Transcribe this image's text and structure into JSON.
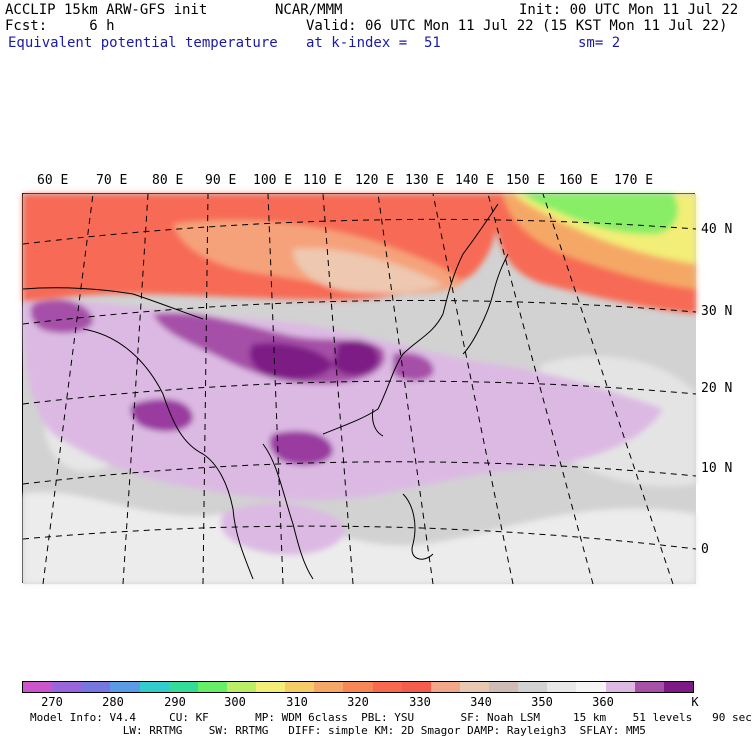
{
  "header": {
    "line1_left": "ACCLIP 15km ARW-GFS init",
    "line1_mid": "NCAR/MMM",
    "line1_right": "Init: 00 UTC Mon 11 Jul 22",
    "line2_left": "Fcst:     6 h",
    "line2_right": "Valid: 06 UTC Mon 11 Jul 22 (15 KST Mon 11 Jul 22)",
    "line3_left": "Equivalent potential temperature",
    "line3_mid": "at k-index =  51",
    "line3_right": "sm= 2"
  },
  "map": {
    "lon_labels": [
      "60 E",
      "70 E",
      "80 E",
      "90 E",
      "100 E",
      "110 E",
      "120 E",
      "130 E",
      "140 E",
      "150 E",
      "160 E",
      "170 E"
    ],
    "lat_labels": [
      "40 N",
      "30 N",
      "20 N",
      "10 N",
      "0"
    ]
  },
  "colorbar": {
    "unit": "K",
    "ticks": [
      "270",
      "280",
      "290",
      "300",
      "310",
      "320",
      "330",
      "340",
      "350",
      "360"
    ],
    "colors": [
      "#cc55cc",
      "#9966dd",
      "#7777e0",
      "#5a9be6",
      "#33cccc",
      "#33dd99",
      "#66ee66",
      "#bbee66",
      "#f2ee77",
      "#f5cc66",
      "#f5a866",
      "#f78855",
      "#f86a4e",
      "#f55c4c",
      "#f2a888",
      "#e8c8b0",
      "#cfbcb6",
      "#d2d2d2",
      "#e8e8e8",
      "#f5f5f5",
      "#ddb8e2",
      "#a650a8",
      "#7e1a86"
    ]
  },
  "footer": {
    "line1": "Model Info: V4.4     CU: KF       MP: WDM 6class  PBL: YSU       SF: Noah LSM     15 km    51 levels   90 sec",
    "line2": "              LW: RRTMG    SW: RRTMG   DIFF: simple KM: 2D Smagor DAMP: Rayleigh3  SFLAY: MM5"
  }
}
